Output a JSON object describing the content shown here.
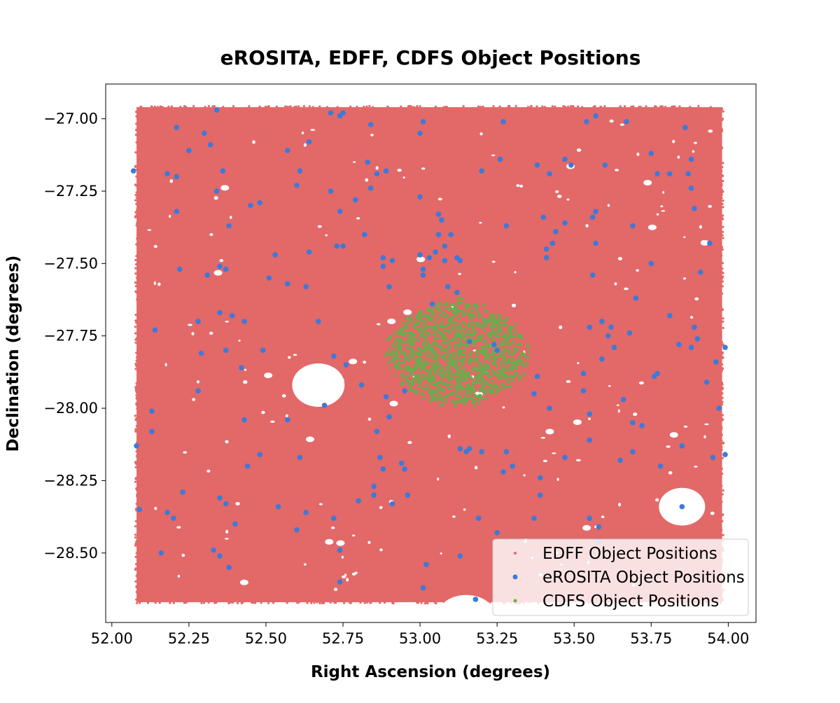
{
  "chart_data": {
    "type": "scatter",
    "title": "eROSITA, EDFF, CDFS Object Positions",
    "xlabel": "Right Ascension (degrees)",
    "ylabel": "Declination (degrees)",
    "xlim": [
      51.98,
      54.09
    ],
    "ylim": [
      -28.74,
      -26.88
    ],
    "xticks": [
      "52.00",
      "52.25",
      "52.50",
      "52.75",
      "53.00",
      "53.25",
      "53.50",
      "53.75",
      "54.00"
    ],
    "yticks": [
      "−27.00",
      "−27.25",
      "−27.50",
      "−27.75",
      "−28.00",
      "−28.25",
      "−28.50"
    ],
    "grid": false,
    "legend_position": "bottom-right",
    "colors": {
      "edff": "#e36868",
      "erosita": "#3d7ad8",
      "cdfs": "#6aad4d"
    },
    "edff_region": {
      "ra_min": 52.08,
      "ra_max": 53.98,
      "dec_min": -28.67,
      "dec_max": -26.96,
      "masked_holes": [
        {
          "ra": 52.67,
          "dec": -27.92,
          "r_ra": 0.085,
          "r_dec": 0.075
        },
        {
          "ra": 53.85,
          "dec": -28.34,
          "r_ra": 0.075,
          "r_dec": 0.065
        },
        {
          "ra": 53.15,
          "dec": -28.71,
          "r_ra": 0.09,
          "r_dec": 0.065
        }
      ]
    },
    "cdfs_region": {
      "ra_center": 53.12,
      "dec_center": -27.81,
      "ra_halfwidth": 0.24,
      "dec_halfwidth": 0.19,
      "n_points": 1200
    },
    "series": [
      {
        "name": "EDFF Object Positions",
        "marker": "small-dot",
        "note_points": "dense rectangular field"
      },
      {
        "name": "eROSITA Object Positions",
        "marker": "dot",
        "points": [
          [
            52.07,
            -27.18
          ],
          [
            52.08,
            -28.13
          ],
          [
            52.09,
            -28.35
          ],
          [
            52.13,
            -28.01
          ],
          [
            52.13,
            -28.08
          ],
          [
            52.14,
            -27.73
          ],
          [
            52.16,
            -28.5
          ],
          [
            52.18,
            -27.19
          ],
          [
            52.18,
            -28.36
          ],
          [
            52.2,
            -28.38
          ],
          [
            52.21,
            -27.03
          ],
          [
            52.21,
            -27.2
          ],
          [
            52.21,
            -27.32
          ],
          [
            52.22,
            -27.52
          ],
          [
            52.23,
            -28.29
          ],
          [
            52.25,
            -27.11
          ],
          [
            52.28,
            -27.7
          ],
          [
            52.28,
            -27.94
          ],
          [
            52.29,
            -27.81
          ],
          [
            52.3,
            -27.05
          ],
          [
            52.31,
            -27.54
          ],
          [
            52.32,
            -27.09
          ],
          [
            52.33,
            -28.49
          ],
          [
            52.34,
            -27.25
          ],
          [
            52.34,
            -26.97
          ],
          [
            52.35,
            -27.51
          ],
          [
            52.35,
            -27.67
          ],
          [
            52.35,
            -28.31
          ],
          [
            52.35,
            -28.51
          ],
          [
            52.36,
            -27.18
          ],
          [
            52.37,
            -27.52
          ],
          [
            52.37,
            -27.8
          ],
          [
            52.37,
            -28.33
          ],
          [
            52.38,
            -27.37
          ],
          [
            52.38,
            -28.55
          ],
          [
            52.39,
            -27.68
          ],
          [
            52.4,
            -28.4
          ],
          [
            52.42,
            -27.86
          ],
          [
            52.43,
            -27.7
          ],
          [
            52.43,
            -28.04
          ],
          [
            52.44,
            -28.2
          ],
          [
            52.48,
            -27.29
          ],
          [
            52.48,
            -28.16
          ],
          [
            52.49,
            -27.8
          ],
          [
            52.51,
            -27.55
          ],
          [
            52.53,
            -27.47
          ],
          [
            52.54,
            -28.34
          ],
          [
            52.57,
            -27.11
          ],
          [
            52.57,
            -27.57
          ],
          [
            52.57,
            -28.04
          ],
          [
            52.6,
            -27.23
          ],
          [
            52.6,
            -28.42
          ],
          [
            52.61,
            -27.18
          ],
          [
            52.61,
            -28.17
          ],
          [
            52.63,
            -27.58
          ],
          [
            52.63,
            -28.36
          ],
          [
            52.64,
            -27.08
          ],
          [
            52.64,
            -27.46
          ],
          [
            52.67,
            -27.7
          ],
          [
            52.69,
            -27.99
          ],
          [
            52.71,
            -26.98
          ],
          [
            52.71,
            -27.25
          ],
          [
            52.72,
            -27.82
          ],
          [
            52.72,
            -28.38
          ],
          [
            52.73,
            -27.44
          ],
          [
            52.74,
            -26.99
          ],
          [
            52.74,
            -27.32
          ],
          [
            52.74,
            -28.49
          ],
          [
            52.74,
            -28.6
          ],
          [
            52.75,
            -26.98
          ],
          [
            52.75,
            -27.44
          ],
          [
            52.76,
            -27.85
          ],
          [
            52.79,
            -27.28
          ],
          [
            52.8,
            -28.32
          ],
          [
            52.81,
            -27.92
          ],
          [
            52.82,
            -27.4
          ],
          [
            52.83,
            -27.15
          ],
          [
            52.84,
            -27.24
          ],
          [
            52.84,
            -27.02
          ],
          [
            52.85,
            -28.27
          ],
          [
            52.85,
            -28.3
          ],
          [
            52.86,
            -27.19
          ],
          [
            52.86,
            -28.08
          ],
          [
            52.87,
            -28.17
          ],
          [
            52.88,
            -27.48
          ],
          [
            52.88,
            -27.51
          ],
          [
            52.88,
            -28.21
          ],
          [
            52.89,
            -27.18
          ],
          [
            52.89,
            -27.96
          ],
          [
            52.9,
            -27.58
          ],
          [
            52.9,
            -28.03
          ],
          [
            52.91,
            -27.49
          ],
          [
            52.91,
            -28.33
          ],
          [
            52.94,
            -28.19
          ],
          [
            52.95,
            -27.94
          ],
          [
            52.95,
            -28.21
          ],
          [
            52.96,
            -28.3
          ],
          [
            53.0,
            -27.05
          ],
          [
            53.0,
            -27.27
          ],
          [
            53.0,
            -27.47
          ],
          [
            53.01,
            -27.01
          ],
          [
            53.01,
            -27.52
          ],
          [
            53.01,
            -27.54
          ],
          [
            53.01,
            -28.62
          ],
          [
            53.02,
            -28.54
          ],
          [
            53.03,
            -27.48
          ],
          [
            53.04,
            -27.64
          ],
          [
            53.05,
            -27.46
          ],
          [
            53.06,
            -27.33
          ],
          [
            53.06,
            -27.4
          ],
          [
            53.07,
            -27.35
          ],
          [
            53.08,
            -27.44
          ],
          [
            53.08,
            -27.49
          ],
          [
            53.09,
            -27.58
          ],
          [
            53.1,
            -27.4
          ],
          [
            53.12,
            -27.6
          ],
          [
            53.12,
            -27.48
          ],
          [
            53.13,
            -27.49
          ],
          [
            53.13,
            -28.14
          ],
          [
            53.13,
            -28.51
          ],
          [
            53.15,
            -28.15
          ],
          [
            53.16,
            -27.77
          ],
          [
            53.16,
            -28.14
          ],
          [
            53.18,
            -28.66
          ],
          [
            53.19,
            -28.38
          ],
          [
            53.2,
            -27.18
          ],
          [
            53.2,
            -28.15
          ],
          [
            53.24,
            -27.78
          ],
          [
            53.25,
            -27.8
          ],
          [
            53.25,
            -28.43
          ],
          [
            53.26,
            -27.14
          ],
          [
            53.27,
            -27.01
          ],
          [
            53.27,
            -28.22
          ],
          [
            53.28,
            -27.37
          ],
          [
            53.28,
            -28.15
          ],
          [
            53.3,
            -28.2
          ],
          [
            53.37,
            -27.95
          ],
          [
            53.37,
            -28.38
          ],
          [
            53.38,
            -27.16
          ],
          [
            53.38,
            -27.89
          ],
          [
            53.39,
            -28.24
          ],
          [
            53.39,
            -28.3
          ],
          [
            53.4,
            -27.34
          ],
          [
            53.41,
            -27.45
          ],
          [
            53.41,
            -27.48
          ],
          [
            53.42,
            -27.19
          ],
          [
            53.42,
            -28.0
          ],
          [
            53.43,
            -27.43
          ],
          [
            53.44,
            -27.39
          ],
          [
            53.47,
            -27.14
          ],
          [
            53.47,
            -27.36
          ],
          [
            53.47,
            -28.17
          ],
          [
            53.49,
            -27.16
          ],
          [
            53.53,
            -27.88
          ],
          [
            53.53,
            -27.94
          ],
          [
            53.54,
            -27.01
          ],
          [
            53.55,
            -27.72
          ],
          [
            53.55,
            -28.02
          ],
          [
            53.55,
            -28.11
          ],
          [
            53.55,
            -28.38
          ],
          [
            53.56,
            -27.34
          ],
          [
            53.56,
            -27.54
          ],
          [
            53.57,
            -27.32
          ],
          [
            53.57,
            -27.43
          ],
          [
            53.57,
            -26.99
          ],
          [
            53.58,
            -28.41
          ],
          [
            53.58,
            -28.46
          ],
          [
            53.59,
            -27.7
          ],
          [
            53.59,
            -27.83
          ],
          [
            53.6,
            -27.16
          ],
          [
            53.61,
            -27.75
          ],
          [
            53.62,
            -27.72
          ],
          [
            53.63,
            -27.79
          ],
          [
            53.65,
            -28.18
          ],
          [
            53.66,
            -27.97
          ],
          [
            53.67,
            -27.01
          ],
          [
            53.68,
            -27.74
          ],
          [
            53.69,
            -28.05
          ],
          [
            53.69,
            -28.15
          ],
          [
            53.69,
            -27.37
          ],
          [
            53.7,
            -27.62
          ],
          [
            53.72,
            -28.06
          ],
          [
            53.75,
            -27.12
          ],
          [
            53.75,
            -27.5
          ],
          [
            53.76,
            -27.89
          ],
          [
            53.77,
            -27.19
          ],
          [
            53.77,
            -27.88
          ],
          [
            53.78,
            -28.2
          ],
          [
            53.81,
            -27.19
          ],
          [
            53.81,
            -27.68
          ],
          [
            53.84,
            -27.78
          ],
          [
            53.85,
            -28.13
          ],
          [
            53.85,
            -28.34
          ],
          [
            53.86,
            -27.03
          ],
          [
            53.87,
            -27.19
          ],
          [
            53.88,
            -27.14
          ],
          [
            53.88,
            -27.24
          ],
          [
            53.88,
            -27.79
          ],
          [
            53.89,
            -27.31
          ],
          [
            53.89,
            -27.72
          ],
          [
            53.9,
            -27.76
          ],
          [
            53.91,
            -27.53
          ],
          [
            53.93,
            -27.91
          ],
          [
            53.94,
            -27.43
          ],
          [
            53.95,
            -28.17
          ],
          [
            53.96,
            -27.84
          ],
          [
            53.97,
            -28.0
          ],
          [
            53.99,
            -27.79
          ],
          [
            53.99,
            -28.16
          ],
          [
            52.45,
            -27.3
          ]
        ]
      },
      {
        "name": "CDFS Object Positions",
        "marker": "small-dot",
        "note_points": "dense cluster near RA 53.12, Dec -27.81"
      }
    ]
  }
}
